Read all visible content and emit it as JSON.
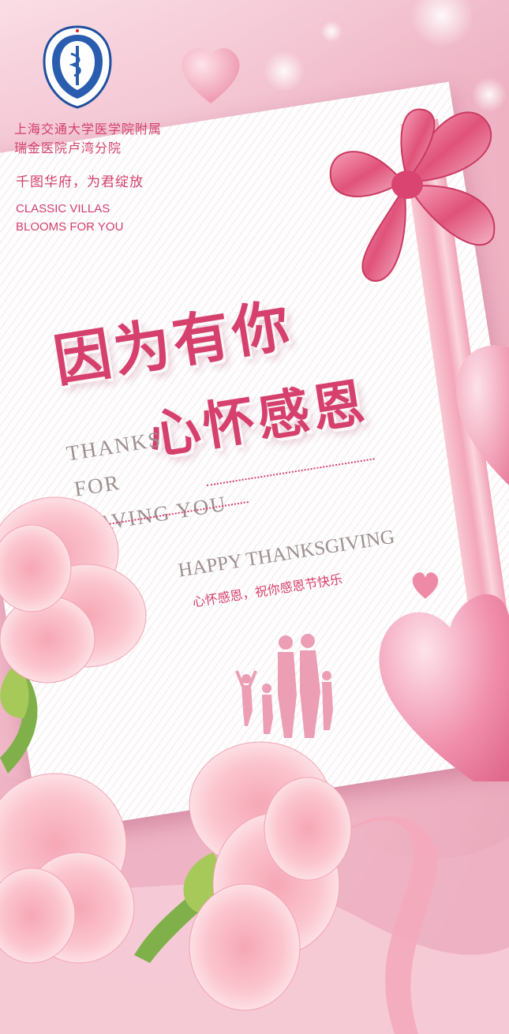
{
  "poster": {
    "organization": {
      "line1": "上海交通大学医学院附属",
      "line2": "瑞金医院卢湾分院"
    },
    "slogan": {
      "cn": "千图华府，为君绽放",
      "en_line1": "CLASSIC VILLAS",
      "en_line2": "BLOOMS FOR YOU"
    },
    "headline": {
      "line1": "因为有你",
      "line2": "心怀感恩"
    },
    "thanks": {
      "line1": "THANKS",
      "line2": "FOR",
      "line3": "HAVING YOU"
    },
    "greeting": {
      "title": "HAPPY THANKSGIVING",
      "subtitle": "心怀感恩，祝你感恩节快乐"
    },
    "colors": {
      "accent": "#d6406c",
      "muted_text": "#9e8f8f",
      "background": "#f2bccb"
    },
    "icons": [
      "hospital-logo-seal",
      "bow",
      "heart",
      "carnation-flower",
      "family-silhouette"
    ]
  }
}
